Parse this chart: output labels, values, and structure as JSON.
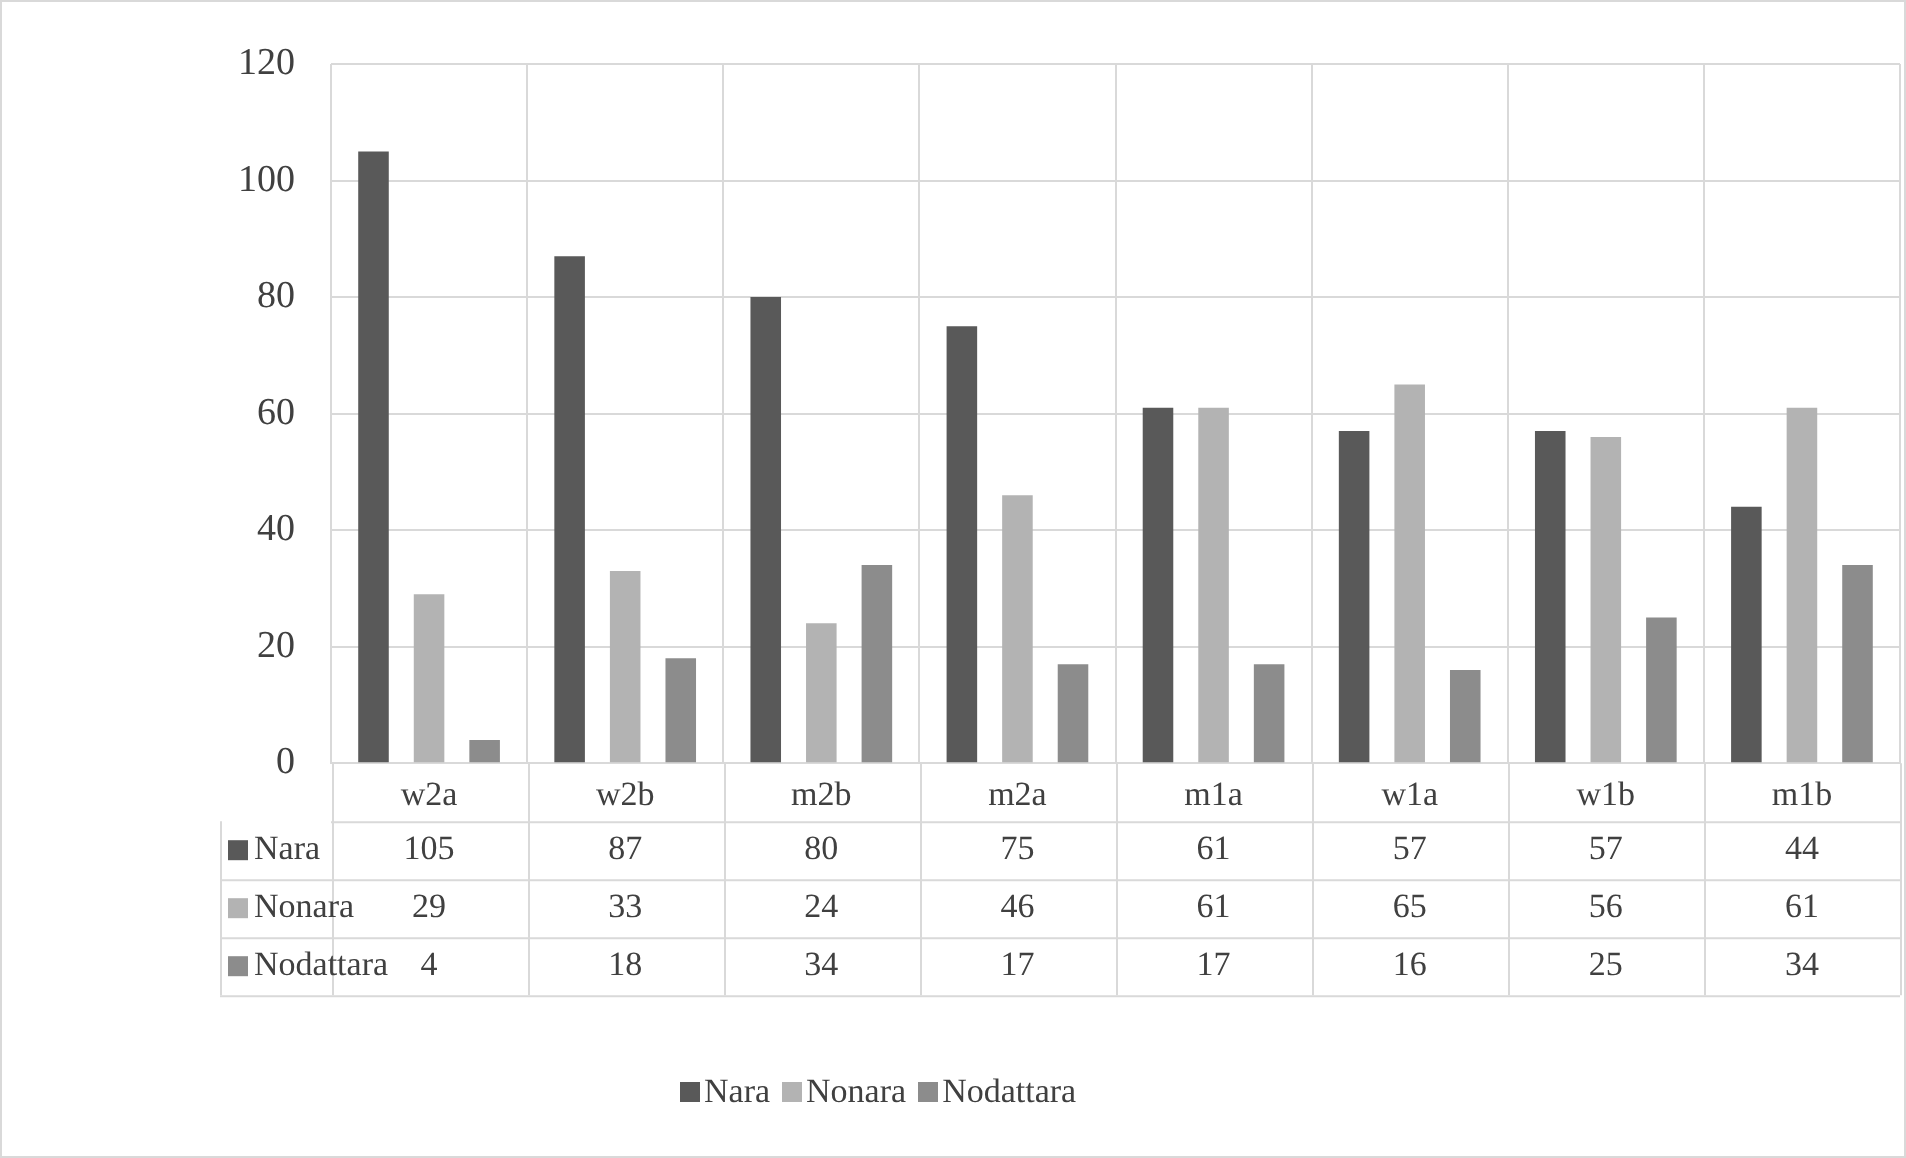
{
  "chart_data": {
    "type": "bar",
    "categories": [
      "w2a",
      "w2b",
      "m2b",
      "m2a",
      "m1a",
      "w1a",
      "w1b",
      "m1b"
    ],
    "series": [
      {
        "name": "Nara",
        "color": "#595959",
        "values": [
          105,
          87,
          80,
          75,
          61,
          57,
          57,
          44
        ]
      },
      {
        "name": "Nonara",
        "color": "#b3b3b3",
        "values": [
          29,
          33,
          24,
          46,
          61,
          65,
          56,
          61
        ]
      },
      {
        "name": "Nodattara",
        "color": "#8c8c8c",
        "values": [
          4,
          18,
          34,
          17,
          17,
          16,
          25,
          34
        ]
      }
    ],
    "ylim": [
      0,
      120
    ],
    "yticks": [
      0,
      20,
      40,
      60,
      80,
      100,
      120
    ],
    "grid": true,
    "legend": "bottom",
    "data_labels": true
  }
}
